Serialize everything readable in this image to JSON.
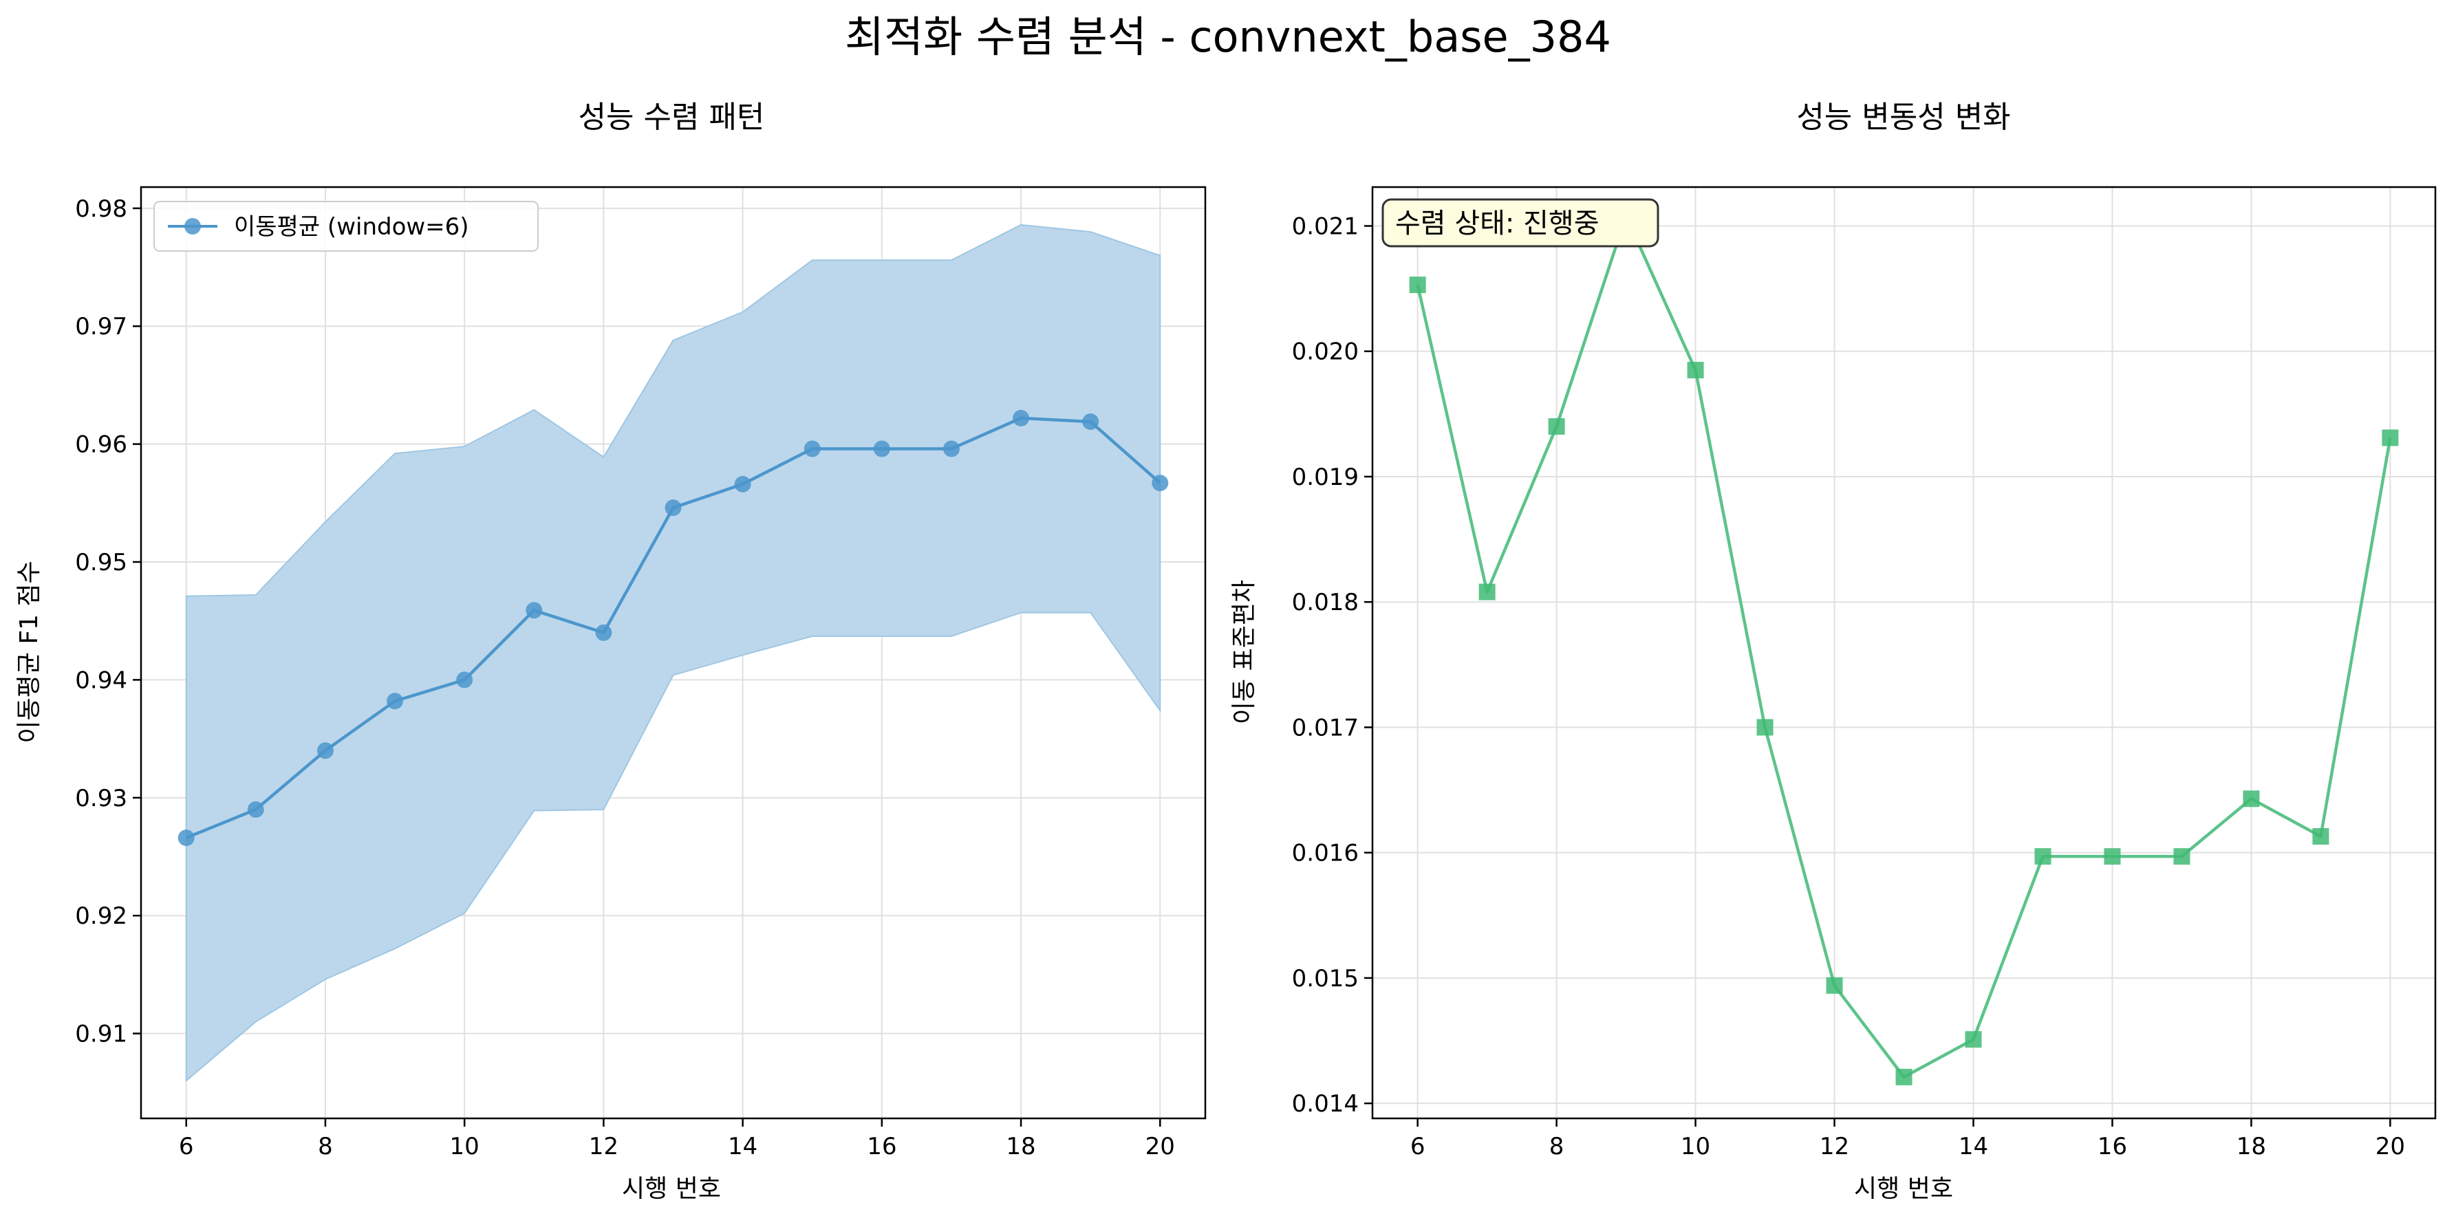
{
  "figure": {
    "title": "최적화 수렴 분석 - convnext_base_384"
  },
  "colors": {
    "line_left": "#4c96cc",
    "band_left": "#bcd7ec",
    "band_left_edge": "#9fc6e2",
    "line_right": "#5cc38a",
    "marker_right": "#3fba73",
    "grid": "#e0e0e0",
    "badge_bg": "#fefde0"
  },
  "chart_data": [
    {
      "type": "line",
      "title": "성능 수렴 패턴",
      "xlabel": "시행 번호",
      "ylabel": "이동평균 F1 점수",
      "x": [
        6,
        7,
        8,
        9,
        10,
        11,
        12,
        13,
        14,
        15,
        16,
        17,
        18,
        19,
        20
      ],
      "series": [
        {
          "name": "이동평균 (window=6)",
          "marker": "circle",
          "values": [
            0.9266,
            0.929,
            0.934,
            0.9382,
            0.94,
            0.9459,
            0.944,
            0.9546,
            0.9566,
            0.9596,
            0.9596,
            0.9596,
            0.9622,
            0.9619,
            0.9567
          ],
          "band_upper": [
            0.9471,
            0.9472,
            0.9534,
            0.9592,
            0.9598,
            0.9629,
            0.9589,
            0.9688,
            0.9712,
            0.9756,
            0.9756,
            0.9756,
            0.9786,
            0.978,
            0.976
          ],
          "band_lower": [
            0.906,
            0.911,
            0.9146,
            0.9172,
            0.9202,
            0.9289,
            0.929,
            0.9404,
            0.9421,
            0.9437,
            0.9437,
            0.9437,
            0.9457,
            0.9457,
            0.9374
          ]
        }
      ],
      "xlim": [
        5.35,
        20.65
      ],
      "ylim": [
        0.9028,
        0.9818
      ],
      "xticks": [
        6,
        8,
        10,
        12,
        14,
        16,
        18,
        20
      ],
      "yticks": [
        0.91,
        0.92,
        0.93,
        0.94,
        0.95,
        0.96,
        0.97,
        0.98
      ],
      "ytick_labels": [
        "0.91",
        "0.92",
        "0.93",
        "0.94",
        "0.95",
        "0.96",
        "0.97",
        "0.98"
      ],
      "grid": true,
      "legend": "top-left"
    },
    {
      "type": "line",
      "title": "성능 변동성 변화",
      "xlabel": "시행 번호",
      "ylabel": "이동 표준편차",
      "x": [
        6,
        7,
        8,
        9,
        10,
        11,
        12,
        13,
        14,
        15,
        16,
        17,
        18,
        19,
        20
      ],
      "series": [
        {
          "marker": "square",
          "values": [
            0.02053,
            0.01808,
            0.0194,
            0.02108,
            0.01985,
            0.017,
            0.01494,
            0.01421,
            0.01451,
            0.01597,
            0.01597,
            0.01597,
            0.01643,
            0.01613,
            0.01931
          ]
        }
      ],
      "xlim": [
        5.35,
        20.65
      ],
      "ylim": [
        0.01388,
        0.02131
      ],
      "xticks": [
        6,
        8,
        10,
        12,
        14,
        16,
        18,
        20
      ],
      "yticks": [
        0.014,
        0.015,
        0.016,
        0.017,
        0.018,
        0.019,
        0.02,
        0.021
      ],
      "ytick_labels": [
        "0.014",
        "0.015",
        "0.016",
        "0.017",
        "0.018",
        "0.019",
        "0.020",
        "0.021"
      ],
      "grid": true,
      "annotation": "수렴 상태: 진행중"
    }
  ]
}
